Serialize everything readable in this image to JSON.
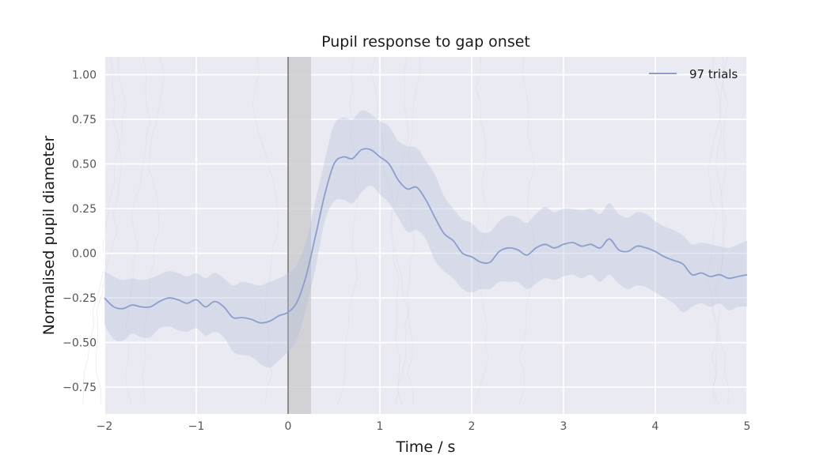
{
  "chart_data": {
    "type": "line",
    "title": "Pupil response to gap onset",
    "xlabel": "Time / s",
    "ylabel": "Normalised pupil diameter",
    "xlim": [
      -2,
      5
    ],
    "ylim": [
      -0.9,
      1.1
    ],
    "x_ticks": [
      -2,
      -1,
      0,
      1,
      2,
      3,
      4,
      5
    ],
    "x_tick_labels": [
      "−2",
      "−1",
      "0",
      "1",
      "2",
      "3",
      "4",
      "5"
    ],
    "y_ticks": [
      -0.75,
      -0.5,
      -0.25,
      0.0,
      0.25,
      0.5,
      0.75,
      1.0
    ],
    "y_tick_labels": [
      "−0.75",
      "−0.50",
      "−0.25",
      "0.00",
      "0.25",
      "0.50",
      "0.75",
      "1.00"
    ],
    "grid": true,
    "legend_position": "top-right",
    "event_line_x": 0,
    "event_shade": [
      0,
      0.25
    ],
    "series": [
      {
        "name": "97 trials",
        "color": "#8c9fcc",
        "band_color": "#b3bedb",
        "x": [
          -2.0,
          -1.9,
          -1.8,
          -1.7,
          -1.6,
          -1.5,
          -1.4,
          -1.3,
          -1.2,
          -1.1,
          -1.0,
          -0.9,
          -0.8,
          -0.7,
          -0.6,
          -0.5,
          -0.4,
          -0.3,
          -0.2,
          -0.1,
          0.0,
          0.1,
          0.2,
          0.3,
          0.4,
          0.5,
          0.6,
          0.7,
          0.8,
          0.9,
          1.0,
          1.1,
          1.2,
          1.3,
          1.4,
          1.5,
          1.6,
          1.7,
          1.8,
          1.9,
          2.0,
          2.1,
          2.2,
          2.3,
          2.4,
          2.5,
          2.6,
          2.7,
          2.8,
          2.9,
          3.0,
          3.1,
          3.2,
          3.3,
          3.4,
          3.5,
          3.6,
          3.7,
          3.8,
          3.9,
          4.0,
          4.1,
          4.2,
          4.3,
          4.4,
          4.5,
          4.6,
          4.7,
          4.8,
          4.9,
          5.0
        ],
        "mean": [
          -0.25,
          -0.3,
          -0.31,
          -0.29,
          -0.3,
          -0.3,
          -0.27,
          -0.25,
          -0.26,
          -0.28,
          -0.26,
          -0.3,
          -0.27,
          -0.3,
          -0.36,
          -0.36,
          -0.37,
          -0.39,
          -0.38,
          -0.35,
          -0.33,
          -0.27,
          -0.12,
          0.1,
          0.33,
          0.5,
          0.54,
          0.53,
          0.58,
          0.58,
          0.54,
          0.5,
          0.41,
          0.36,
          0.37,
          0.3,
          0.2,
          0.11,
          0.07,
          0.0,
          -0.02,
          -0.05,
          -0.05,
          0.01,
          0.03,
          0.02,
          -0.01,
          0.03,
          0.05,
          0.03,
          0.05,
          0.06,
          0.04,
          0.05,
          0.03,
          0.08,
          0.02,
          0.01,
          0.04,
          0.03,
          0.01,
          -0.02,
          -0.04,
          -0.06,
          -0.12,
          -0.11,
          -0.13,
          -0.12,
          -0.14,
          -0.13,
          -0.12
        ],
        "lower": [
          -0.4,
          -0.48,
          -0.49,
          -0.45,
          -0.47,
          -0.47,
          -0.42,
          -0.41,
          -0.43,
          -0.44,
          -0.42,
          -0.46,
          -0.44,
          -0.47,
          -0.55,
          -0.57,
          -0.58,
          -0.62,
          -0.64,
          -0.6,
          -0.55,
          -0.48,
          -0.3,
          -0.08,
          0.18,
          0.29,
          0.3,
          0.28,
          0.34,
          0.38,
          0.33,
          0.28,
          0.2,
          0.12,
          0.13,
          0.08,
          -0.04,
          -0.1,
          -0.14,
          -0.2,
          -0.22,
          -0.2,
          -0.2,
          -0.16,
          -0.16,
          -0.16,
          -0.2,
          -0.17,
          -0.14,
          -0.15,
          -0.13,
          -0.12,
          -0.14,
          -0.12,
          -0.16,
          -0.12,
          -0.17,
          -0.2,
          -0.18,
          -0.19,
          -0.22,
          -0.25,
          -0.28,
          -0.33,
          -0.3,
          -0.28,
          -0.3,
          -0.28,
          -0.32,
          -0.3,
          -0.3
        ],
        "upper": [
          -0.1,
          -0.13,
          -0.15,
          -0.14,
          -0.15,
          -0.14,
          -0.12,
          -0.1,
          -0.11,
          -0.13,
          -0.11,
          -0.14,
          -0.11,
          -0.14,
          -0.18,
          -0.16,
          -0.17,
          -0.18,
          -0.16,
          -0.14,
          -0.11,
          -0.06,
          0.07,
          0.3,
          0.52,
          0.72,
          0.76,
          0.75,
          0.8,
          0.78,
          0.74,
          0.71,
          0.63,
          0.6,
          0.59,
          0.52,
          0.44,
          0.32,
          0.25,
          0.19,
          0.17,
          0.12,
          0.12,
          0.18,
          0.21,
          0.2,
          0.17,
          0.22,
          0.26,
          0.23,
          0.25,
          0.25,
          0.24,
          0.25,
          0.22,
          0.28,
          0.22,
          0.2,
          0.23,
          0.22,
          0.18,
          0.15,
          0.13,
          0.1,
          0.05,
          0.06,
          0.05,
          0.04,
          0.03,
          0.05,
          0.07
        ]
      }
    ]
  },
  "colors": {
    "plot_background": "#eaeaf2",
    "grid": "#ffffff",
    "event_line": "#777777",
    "event_shade": "#c8c8cc"
  }
}
